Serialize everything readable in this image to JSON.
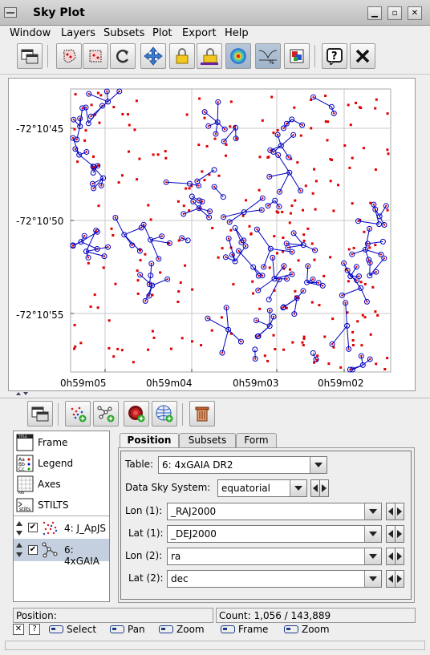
{
  "window": {
    "title": "Sky Plot"
  },
  "menubar": {
    "items": [
      "Window",
      "Layers",
      "Subsets",
      "Plot",
      "Export",
      "Help"
    ]
  },
  "toolbar": {
    "icons": [
      "new-window-icon",
      "blob-subset-icon",
      "lasso-subset-icon",
      "replot-icon",
      "navigate-icon",
      "lock-icon",
      "scale-lock-icon",
      "density-icon",
      "sketch-icon",
      "swatch-icon",
      "help-icon",
      "close-icon"
    ]
  },
  "plot": {
    "y_ticks": [
      "-72°10'45",
      "-72°10'50",
      "-72°10'55"
    ],
    "x_ticks": [
      "0h59m05",
      "0h59m04",
      "0h59m03",
      "0h59m02"
    ],
    "colors": {
      "points_a": "#e00000",
      "points_b": "#0000c0",
      "grid": "#c8c8c8"
    }
  },
  "layer_toolbar": {
    "icons": [
      "window-icon",
      "add-scatter-icon",
      "add-pairs-icon",
      "add-density-icon",
      "add-skygrid-icon",
      "delete-icon"
    ]
  },
  "layers": {
    "items": [
      {
        "label": "Frame",
        "icon": "frame-icon"
      },
      {
        "label": "Legend",
        "icon": "legend-icon"
      },
      {
        "label": "Axes",
        "icon": "axes-icon"
      },
      {
        "label": "STILTS",
        "icon": "stilts-icon"
      },
      {
        "label": "4: J_ApJS",
        "icon": "scatter-layer-icon",
        "checked": true
      },
      {
        "label": "6: 4xGAIA",
        "icon": "pair-layer-icon",
        "checked": true,
        "selected": true
      }
    ]
  },
  "tabs": [
    "Position",
    "Subsets",
    "Form"
  ],
  "form": {
    "table_label": "Table:",
    "table_value": "6: 4xGAIA DR2",
    "sky_system_label": "Data Sky System:",
    "sky_system_value": "equatorial",
    "fields": [
      {
        "label": "Lon (1):",
        "value": "_RAJ2000"
      },
      {
        "label": "Lat (1):",
        "value": "_DEJ2000"
      },
      {
        "label": "Lon (2):",
        "value": "ra"
      },
      {
        "label": "Lat (2):",
        "value": "dec"
      }
    ]
  },
  "status": {
    "position_label": "Position:",
    "count_text": "Count: 1,056 / 143,889"
  },
  "hints": {
    "select": "Select",
    "pan": "Pan",
    "zoom1": "Zoom",
    "frame": "Frame",
    "zoom2": "Zoom"
  }
}
